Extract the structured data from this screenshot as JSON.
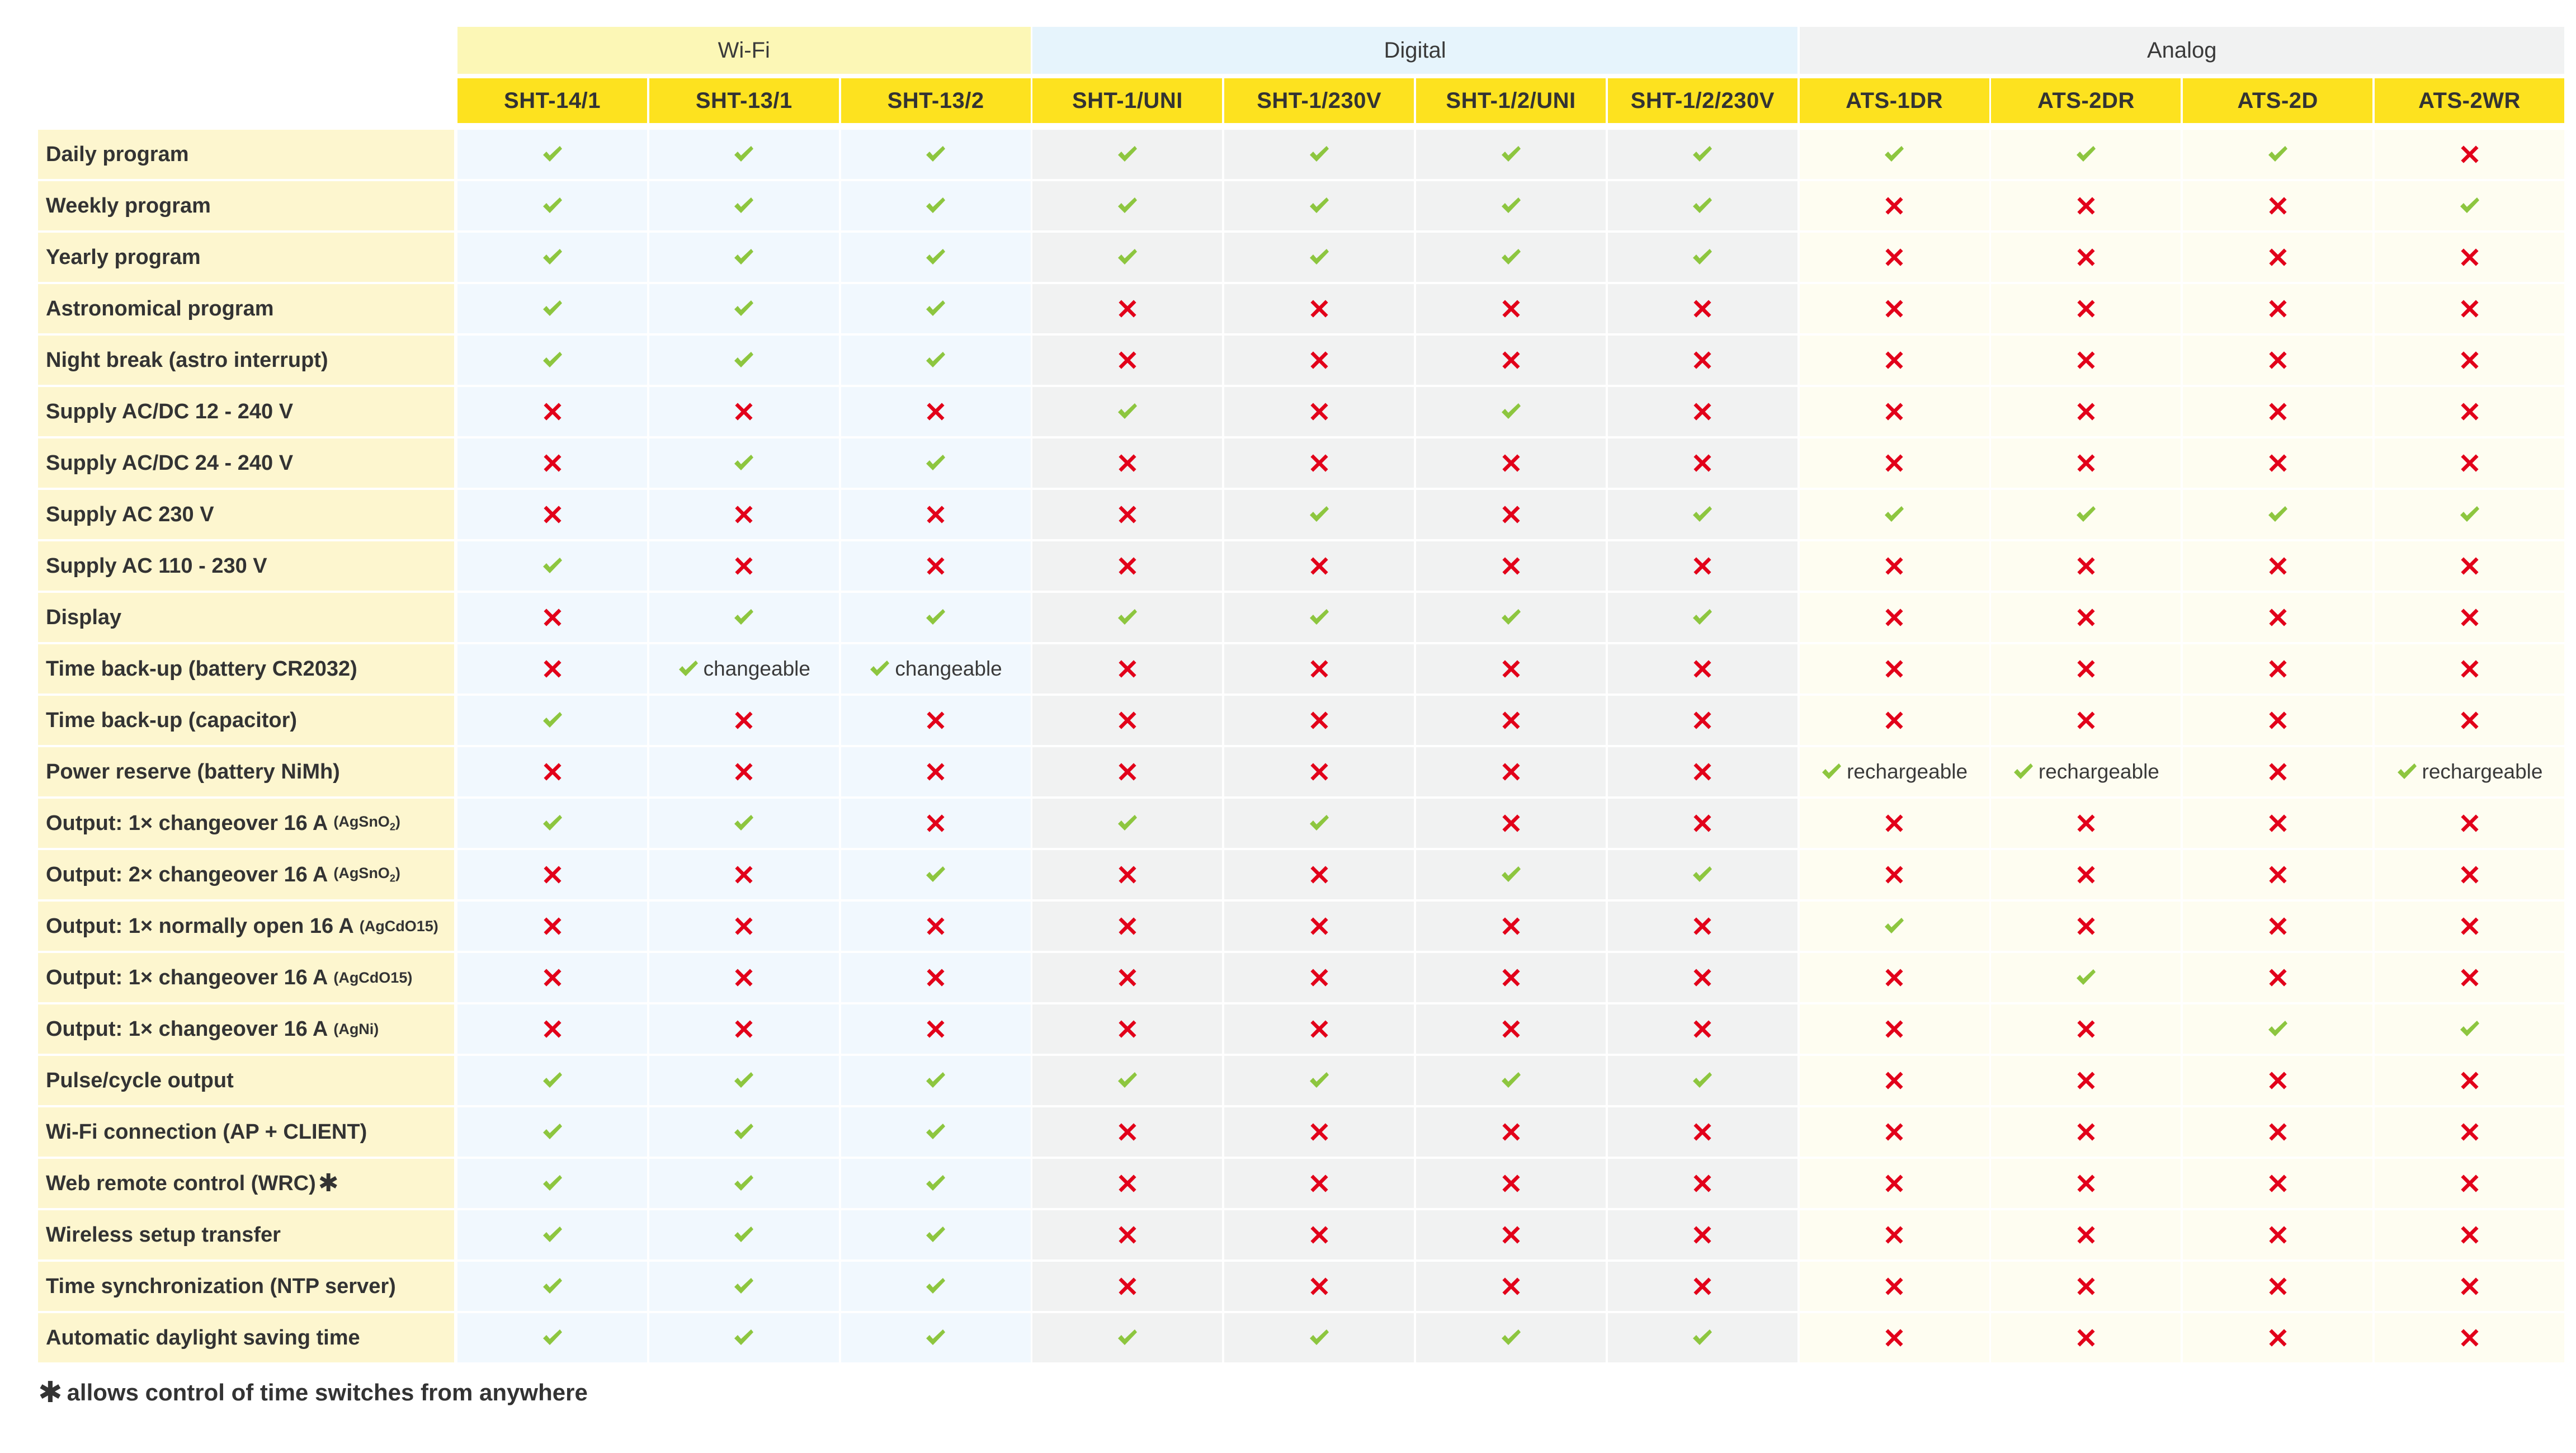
{
  "colors": {
    "check": "#8dc63f",
    "cross": "#e2001a",
    "header_yellow": "#fde21f"
  },
  "groups": [
    {
      "name": "Wi-Fi",
      "bg": "#fcf7b6",
      "body_bg": "#f1f8fe",
      "columns": [
        "SHT-14/1",
        "SHT-13/1",
        "SHT-13/2"
      ]
    },
    {
      "name": "Digital",
      "bg": "#e6f4fc",
      "body_bg": "#f1f2f2",
      "columns": [
        "SHT-1/UNI",
        "SHT-1/230V",
        "SHT-1/2/UNI",
        "SHT-1/2/230V"
      ]
    },
    {
      "name": "Analog",
      "bg": "#f1f2f2",
      "body_bg": "#fefdf1",
      "columns": [
        "ATS-1DR",
        "ATS-2DR",
        "ATS-2D",
        "ATS-2WR"
      ]
    }
  ],
  "rows": [
    {
      "label": "Daily program",
      "values": [
        "y",
        "y",
        "y",
        "y",
        "y",
        "y",
        "y",
        "y",
        "y",
        "y",
        "n"
      ]
    },
    {
      "label": "Weekly program",
      "values": [
        "y",
        "y",
        "y",
        "y",
        "y",
        "y",
        "y",
        "n",
        "n",
        "n",
        "y"
      ]
    },
    {
      "label": "Yearly program",
      "values": [
        "y",
        "y",
        "y",
        "y",
        "y",
        "y",
        "y",
        "n",
        "n",
        "n",
        "n"
      ]
    },
    {
      "label": "Astronomical program",
      "values": [
        "y",
        "y",
        "y",
        "n",
        "n",
        "n",
        "n",
        "n",
        "n",
        "n",
        "n"
      ]
    },
    {
      "label": "Night break (astro interrupt)",
      "values": [
        "y",
        "y",
        "y",
        "n",
        "n",
        "n",
        "n",
        "n",
        "n",
        "n",
        "n"
      ]
    },
    {
      "label": "Supply AC/DC 12 - 240 V",
      "values": [
        "n",
        "n",
        "n",
        "y",
        "n",
        "y",
        "n",
        "n",
        "n",
        "n",
        "n"
      ]
    },
    {
      "label": "Supply AC/DC 24 - 240 V",
      "values": [
        "n",
        "y",
        "y",
        "n",
        "n",
        "n",
        "n",
        "n",
        "n",
        "n",
        "n"
      ]
    },
    {
      "label": "Supply AC 230 V",
      "values": [
        "n",
        "n",
        "n",
        "n",
        "y",
        "n",
        "y",
        "y",
        "y",
        "y",
        "y"
      ]
    },
    {
      "label": "Supply AC 110 - 230 V",
      "values": [
        "y",
        "n",
        "n",
        "n",
        "n",
        "n",
        "n",
        "n",
        "n",
        "n",
        "n"
      ]
    },
    {
      "label": "Display",
      "values": [
        "n",
        "y",
        "y",
        "y",
        "y",
        "y",
        "y",
        "n",
        "n",
        "n",
        "n"
      ]
    },
    {
      "label": "Time back-up (battery CR2032)",
      "values": [
        "n",
        "y:changeable",
        "y:changeable",
        "n",
        "n",
        "n",
        "n",
        "n",
        "n",
        "n",
        "n"
      ]
    },
    {
      "label": "Time back-up (capacitor)",
      "values": [
        "y",
        "n",
        "n",
        "n",
        "n",
        "n",
        "n",
        "n",
        "n",
        "n",
        "n"
      ]
    },
    {
      "label": "Power reserve (battery NiMh)",
      "values": [
        "n",
        "n",
        "n",
        "n",
        "n",
        "n",
        "n",
        "y:rechargeable",
        "y:rechargeable",
        "n",
        "y:rechargeable"
      ]
    },
    {
      "label": "Output: 1× changeover 16 A",
      "label_sub": "(AgSnO",
      "label_subscript": "2",
      "label_sub_end": ")",
      "values": [
        "y",
        "y",
        "n",
        "y",
        "y",
        "n",
        "n",
        "n",
        "n",
        "n",
        "n"
      ]
    },
    {
      "label": "Output: 2× changeover 16 A",
      "label_sub": "(AgSnO",
      "label_subscript": "2",
      "label_sub_end": ")",
      "values": [
        "n",
        "n",
        "y",
        "n",
        "n",
        "y",
        "y",
        "n",
        "n",
        "n",
        "n"
      ]
    },
    {
      "label": "Output: 1× normally open 16 A",
      "label_sub": "(AgCdO15)",
      "values": [
        "n",
        "n",
        "n",
        "n",
        "n",
        "n",
        "n",
        "y",
        "n",
        "n",
        "n"
      ]
    },
    {
      "label": "Output: 1× changeover 16 A",
      "label_sub": "(AgCdO15)",
      "values": [
        "n",
        "n",
        "n",
        "n",
        "n",
        "n",
        "n",
        "n",
        "y",
        "n",
        "n"
      ]
    },
    {
      "label": "Output: 1× changeover 16 A",
      "label_sub": "(AgNi)",
      "values": [
        "n",
        "n",
        "n",
        "n",
        "n",
        "n",
        "n",
        "n",
        "n",
        "y",
        "y"
      ]
    },
    {
      "label": "Pulse/cycle output",
      "values": [
        "y",
        "y",
        "y",
        "y",
        "y",
        "y",
        "y",
        "n",
        "n",
        "n",
        "n"
      ]
    },
    {
      "label": "Wi-Fi connection (AP + CLIENT)",
      "values": [
        "y",
        "y",
        "y",
        "n",
        "n",
        "n",
        "n",
        "n",
        "n",
        "n",
        "n"
      ]
    },
    {
      "label": "Web remote control (WRC)",
      "asterisk": "✱",
      "values": [
        "y",
        "y",
        "y",
        "n",
        "n",
        "n",
        "n",
        "n",
        "n",
        "n",
        "n"
      ]
    },
    {
      "label": "Wireless setup transfer",
      "values": [
        "y",
        "y",
        "y",
        "n",
        "n",
        "n",
        "n",
        "n",
        "n",
        "n",
        "n"
      ]
    },
    {
      "label": "Time synchronization (NTP server)",
      "values": [
        "y",
        "y",
        "y",
        "n",
        "n",
        "n",
        "n",
        "n",
        "n",
        "n",
        "n"
      ]
    },
    {
      "label": "Automatic daylight saving time",
      "values": [
        "y",
        "y",
        "y",
        "y",
        "y",
        "y",
        "y",
        "n",
        "n",
        "n",
        "n"
      ]
    }
  ],
  "footnote": {
    "mark": "✱",
    "text": "allows control of time switches from anywhere"
  }
}
